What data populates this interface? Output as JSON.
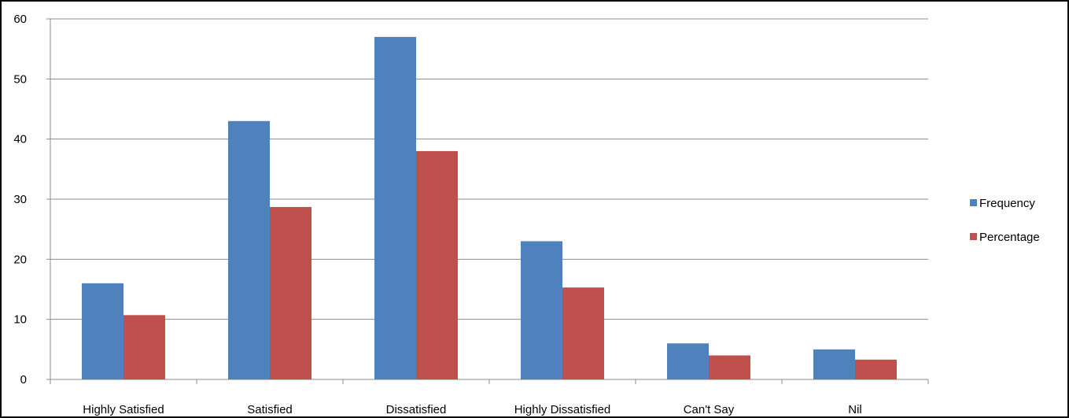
{
  "chart_data": {
    "type": "bar",
    "title": "",
    "xlabel": "",
    "ylabel": "",
    "categories": [
      "Highly Satisfied",
      "Satisfied",
      "Dissatisfied",
      "Highly Dissatisfied",
      "Can't Say",
      "Nil"
    ],
    "series": [
      {
        "name": "Frequency",
        "color": "#4F81BD",
        "values": [
          16,
          43,
          57,
          23,
          6,
          5
        ]
      },
      {
        "name": "Percentage",
        "color": "#C0504D",
        "values": [
          10.7,
          28.7,
          38,
          15.3,
          4,
          3.3
        ]
      }
    ],
    "ylim": [
      0,
      60
    ],
    "yticks": [
      0,
      10,
      20,
      30,
      40,
      50,
      60
    ],
    "grid": true,
    "legend_position": "right"
  }
}
